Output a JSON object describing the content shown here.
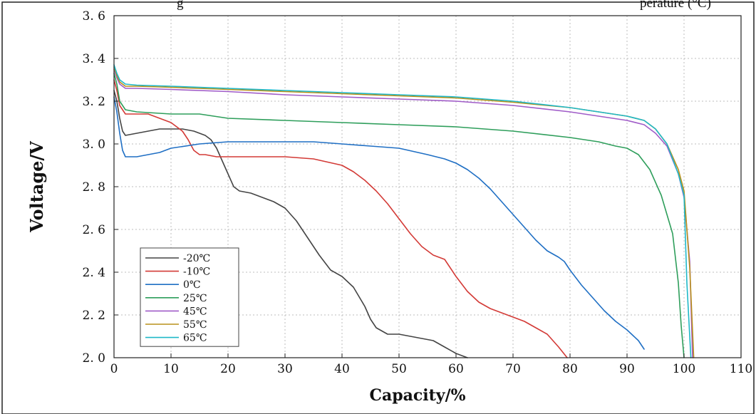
{
  "top_fragments": {
    "left": "g",
    "right": "perature (°C)"
  },
  "chart_data": {
    "type": "line",
    "xlabel": "Capacity/%",
    "ylabel": "Voltage/V",
    "xlim": [
      0,
      110
    ],
    "ylim": [
      2.0,
      3.6
    ],
    "xticks": [
      0,
      10,
      20,
      30,
      40,
      50,
      60,
      70,
      80,
      90,
      100,
      110
    ],
    "yticks": [
      2.0,
      2.2,
      2.4,
      2.6,
      2.8,
      3.0,
      3.2,
      3.4,
      3.6
    ],
    "xtick_labels": [
      "0",
      "10",
      "20",
      "30",
      "40",
      "50",
      "60",
      "70",
      "80",
      "90",
      "100",
      "110"
    ],
    "ytick_labels": [
      "2. 0",
      "2. 2",
      "2. 4",
      "2. 6",
      "2. 8",
      "3. 0",
      "3. 2",
      "3. 4",
      "3. 6"
    ],
    "grid": true,
    "legend_position": "bottom-left",
    "series": [
      {
        "name": "-20℃",
        "color": "#444444",
        "x": [
          0,
          0.5,
          1,
          1.5,
          2,
          4,
          6,
          8,
          10,
          12,
          14,
          16,
          17,
          18,
          19,
          20,
          21,
          22,
          24,
          26,
          28,
          30,
          32,
          34,
          36,
          38,
          40,
          42,
          44,
          45,
          46,
          48,
          50,
          52,
          54,
          56,
          58,
          60,
          62
        ],
        "y": [
          3.25,
          3.2,
          3.12,
          3.06,
          3.04,
          3.05,
          3.06,
          3.07,
          3.07,
          3.07,
          3.06,
          3.04,
          3.02,
          2.98,
          2.92,
          2.86,
          2.8,
          2.78,
          2.77,
          2.75,
          2.73,
          2.7,
          2.64,
          2.56,
          2.48,
          2.41,
          2.38,
          2.33,
          2.24,
          2.18,
          2.14,
          2.11,
          2.11,
          2.1,
          2.09,
          2.08,
          2.05,
          2.02,
          2.0
        ]
      },
      {
        "name": "-10℃",
        "color": "#d33a36",
        "x": [
          0,
          0.5,
          1,
          2,
          4,
          6,
          8,
          10,
          12,
          13,
          14,
          15,
          16,
          18,
          20,
          22,
          25,
          30,
          35,
          40,
          42,
          44,
          46,
          48,
          50,
          52,
          54,
          56,
          57,
          58,
          60,
          62,
          64,
          66,
          68,
          70,
          72,
          74,
          76,
          78,
          79.5
        ],
        "y": [
          3.3,
          3.25,
          3.18,
          3.14,
          3.14,
          3.14,
          3.12,
          3.1,
          3.06,
          3.02,
          2.97,
          2.95,
          2.95,
          2.94,
          2.94,
          2.94,
          2.94,
          2.94,
          2.93,
          2.9,
          2.87,
          2.83,
          2.78,
          2.72,
          2.65,
          2.58,
          2.52,
          2.48,
          2.47,
          2.46,
          2.38,
          2.31,
          2.26,
          2.23,
          2.21,
          2.19,
          2.17,
          2.14,
          2.11,
          2.05,
          2.0
        ]
      },
      {
        "name": "0℃",
        "color": "#1f6fc4",
        "x": [
          0,
          0.5,
          1,
          1.5,
          2,
          4,
          6,
          8,
          10,
          15,
          20,
          25,
          30,
          35,
          40,
          45,
          50,
          55,
          58,
          60,
          62,
          64,
          66,
          68,
          70,
          72,
          74,
          76,
          78,
          79,
          80,
          82,
          84,
          86,
          88,
          90,
          92,
          93
        ],
        "y": [
          3.22,
          3.15,
          3.05,
          2.97,
          2.94,
          2.94,
          2.95,
          2.96,
          2.98,
          3.0,
          3.01,
          3.01,
          3.01,
          3.01,
          3.0,
          2.99,
          2.98,
          2.95,
          2.93,
          2.91,
          2.88,
          2.84,
          2.79,
          2.73,
          2.67,
          2.61,
          2.55,
          2.5,
          2.47,
          2.45,
          2.41,
          2.34,
          2.28,
          2.22,
          2.17,
          2.13,
          2.08,
          2.04
        ]
      },
      {
        "name": "25℃",
        "color": "#2e9e5b",
        "x": [
          0,
          0.5,
          1,
          2,
          4,
          10,
          15,
          20,
          30,
          40,
          50,
          60,
          70,
          80,
          85,
          88,
          90,
          92,
          94,
          96,
          98,
          99,
          99.5,
          100
        ],
        "y": [
          3.33,
          3.28,
          3.2,
          3.16,
          3.15,
          3.14,
          3.14,
          3.12,
          3.11,
          3.1,
          3.09,
          3.08,
          3.06,
          3.03,
          3.01,
          2.99,
          2.98,
          2.95,
          2.88,
          2.76,
          2.58,
          2.35,
          2.15,
          2.0
        ]
      },
      {
        "name": "45℃",
        "color": "#a05cc8",
        "x": [
          0,
          0.5,
          1,
          2,
          4,
          10,
          20,
          30,
          40,
          50,
          60,
          70,
          80,
          85,
          90,
          93,
          95,
          97,
          99,
          100,
          101,
          101.5
        ],
        "y": [
          3.35,
          3.31,
          3.28,
          3.26,
          3.26,
          3.255,
          3.245,
          3.23,
          3.22,
          3.21,
          3.2,
          3.18,
          3.15,
          3.13,
          3.11,
          3.09,
          3.05,
          2.99,
          2.86,
          2.75,
          2.45,
          2.0
        ]
      },
      {
        "name": "55℃",
        "color": "#b8901a",
        "x": [
          0,
          0.5,
          1,
          2,
          4,
          10,
          20,
          30,
          40,
          50,
          60,
          70,
          80,
          85,
          90,
          93,
          95,
          97,
          99,
          100,
          101,
          101.7
        ],
        "y": [
          3.36,
          3.32,
          3.29,
          3.27,
          3.27,
          3.265,
          3.255,
          3.245,
          3.235,
          3.225,
          3.215,
          3.195,
          3.17,
          3.15,
          3.13,
          3.11,
          3.07,
          3.0,
          2.88,
          2.78,
          2.42,
          2.0
        ]
      },
      {
        "name": "65℃",
        "color": "#1fb8c8",
        "x": [
          0,
          0.5,
          1,
          2,
          4,
          10,
          20,
          30,
          40,
          50,
          60,
          70,
          80,
          85,
          90,
          93,
          95,
          97,
          99,
          100,
          100.5,
          101.2
        ],
        "y": [
          3.37,
          3.33,
          3.3,
          3.28,
          3.275,
          3.27,
          3.26,
          3.25,
          3.24,
          3.23,
          3.22,
          3.2,
          3.17,
          3.15,
          3.13,
          3.11,
          3.07,
          3.0,
          2.86,
          2.76,
          2.35,
          2.0
        ]
      }
    ]
  }
}
